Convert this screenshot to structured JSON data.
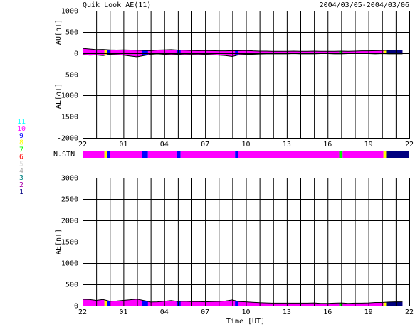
{
  "title": "Quik Look AE(11)",
  "date_range": "2004/03/05-2004/03/06",
  "xlabel": "Time [UT]",
  "station_legend": {
    "labels": [
      11,
      10,
      9,
      8,
      7,
      6,
      5,
      4,
      3,
      2,
      1
    ],
    "colors": [
      "#00ffff",
      "#ff00ff",
      "#0000ff",
      "#ffff00",
      "#00ff00",
      "#ff0000",
      "#dddddd",
      "#aaaaaa",
      "#008080",
      "#aa00aa",
      "#000080"
    ]
  },
  "station_bar": {
    "label": "N.STN",
    "x": [
      0,
      1.6,
      1.8,
      2.0,
      4.35,
      4.8,
      6.9,
      7.2,
      11.2,
      11.4,
      18.85,
      19.1,
      22.1,
      22.3
    ],
    "values": [
      10,
      8,
      9,
      10,
      9,
      10,
      9,
      10,
      9,
      10,
      7,
      10,
      8,
      1
    ]
  },
  "chart_data": [
    {
      "type": "area",
      "ylabel_upper": "AU[nT]",
      "ylabel_lower": "AL[nT]",
      "xlim": [
        0,
        24
      ],
      "ylim": [
        -2000,
        1000
      ],
      "yticks": [
        1000,
        500,
        0,
        -500,
        -1000,
        -1500,
        -2000
      ],
      "xticks": [
        {
          "value": 0,
          "label": "22"
        },
        {
          "value": 3,
          "label": "01"
        },
        {
          "value": 6,
          "label": "04"
        },
        {
          "value": 9,
          "label": "07"
        },
        {
          "value": 12,
          "label": "10"
        },
        {
          "value": 15,
          "label": "13"
        },
        {
          "value": 18,
          "label": "16"
        },
        {
          "value": 21,
          "label": "19"
        },
        {
          "value": 24,
          "label": "22"
        }
      ],
      "xgrid": [
        0,
        1,
        2,
        3,
        4,
        5,
        6,
        7,
        8,
        9,
        10,
        11,
        12,
        13,
        14,
        15,
        16,
        17,
        18,
        19,
        20,
        21,
        22,
        23,
        24
      ],
      "grid": true,
      "x": [
        0,
        0.5,
        1,
        1.5,
        2,
        2.5,
        3,
        3.5,
        4,
        4.5,
        5,
        5.5,
        6,
        6.5,
        7,
        7.5,
        8,
        8.5,
        9,
        9.5,
        10,
        10.5,
        11,
        11.5,
        12,
        12.5,
        13,
        13.5,
        14,
        14.5,
        15,
        15.5,
        16,
        16.5,
        17,
        17.5,
        18,
        18.5,
        19,
        19.5,
        20,
        20.5,
        21,
        21.5,
        22,
        22.5,
        23,
        23.5
      ],
      "series": [
        {
          "color": "#ff00ff",
          "values": [
            110,
            95,
            80,
            85,
            75,
            70,
            75,
            70,
            65,
            60,
            55,
            70,
            75,
            80,
            70,
            65,
            60,
            55,
            60,
            55,
            50,
            50,
            55,
            55,
            60,
            50,
            45,
            45,
            40,
            40,
            40,
            45,
            40,
            40,
            45,
            40,
            40,
            40,
            45,
            40,
            45,
            50,
            50,
            55,
            60,
            65,
            70,
            70
          ]
        },
        {
          "color": "#ff00ff",
          "values": [
            -40,
            -50,
            -45,
            -60,
            -30,
            -40,
            -50,
            -70,
            -90,
            -60,
            -30,
            -20,
            -30,
            -40,
            -30,
            -40,
            -35,
            -40,
            -30,
            -40,
            -50,
            -60,
            -80,
            -40,
            -30,
            -30,
            -25,
            -20,
            -20,
            -20,
            -20,
            -15,
            -20,
            -20,
            -20,
            -15,
            -15,
            -20,
            -20,
            -15,
            -15,
            -10,
            -15,
            -20,
            -15,
            -20,
            -20,
            -20
          ]
        }
      ]
    },
    {
      "type": "area",
      "ylabel": "AE[nT]",
      "xlim": [
        0,
        24
      ],
      "ylim": [
        0,
        3000
      ],
      "yticks": [
        3000,
        2500,
        2000,
        1500,
        1000,
        500,
        0
      ],
      "xticks": [
        {
          "value": 0,
          "label": "22"
        },
        {
          "value": 3,
          "label": "01"
        },
        {
          "value": 6,
          "label": "04"
        },
        {
          "value": 9,
          "label": "07"
        },
        {
          "value": 12,
          "label": "10"
        },
        {
          "value": 15,
          "label": "13"
        },
        {
          "value": 18,
          "label": "16"
        },
        {
          "value": 21,
          "label": "19"
        },
        {
          "value": 24,
          "label": "22"
        }
      ],
      "xgrid": [
        0,
        1,
        2,
        3,
        4,
        5,
        6,
        7,
        8,
        9,
        10,
        11,
        12,
        13,
        14,
        15,
        16,
        17,
        18,
        19,
        20,
        21,
        22,
        23,
        24
      ],
      "grid": true,
      "x": [
        0,
        0.5,
        1,
        1.5,
        2,
        2.5,
        3,
        3.5,
        4,
        4.5,
        5,
        5.5,
        6,
        6.5,
        7,
        7.5,
        8,
        8.5,
        9,
        9.5,
        10,
        10.5,
        11,
        11.5,
        12,
        12.5,
        13,
        13.5,
        14,
        14.5,
        15,
        15.5,
        16,
        16.5,
        17,
        17.5,
        18,
        18.5,
        19,
        19.5,
        20,
        20.5,
        21,
        21.5,
        22,
        22.5,
        23,
        23.5
      ],
      "series": [
        {
          "color": "#ff00ff",
          "values": [
            150,
            145,
            125,
            145,
            105,
            110,
            125,
            140,
            155,
            120,
            85,
            90,
            105,
            120,
            100,
            105,
            95,
            95,
            90,
            95,
            100,
            110,
            135,
            95,
            90,
            80,
            70,
            65,
            60,
            60,
            60,
            60,
            60,
            60,
            65,
            55,
            55,
            60,
            65,
            55,
            60,
            60,
            65,
            75,
            75,
            85,
            90,
            90
          ]
        }
      ]
    }
  ]
}
